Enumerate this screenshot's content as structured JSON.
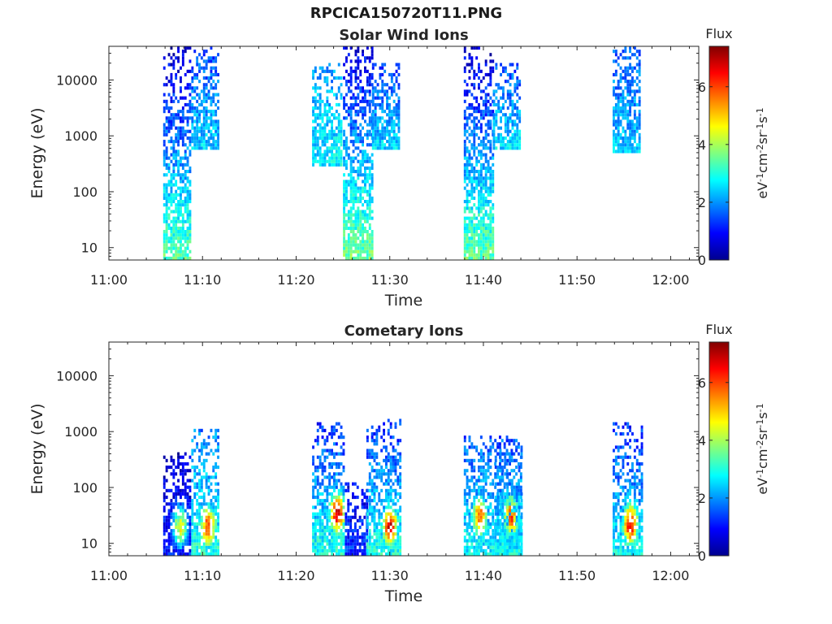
{
  "figure_title": "RPCICA150720T11.PNG",
  "colorbar": {
    "label_title": "Flux",
    "unit_parts": [
      "eV",
      "-1",
      "cm",
      "-2",
      "sr",
      "-1",
      "s",
      "-1"
    ],
    "ticks": [
      0,
      2,
      4,
      6
    ],
    "range": [
      0,
      7.4
    ],
    "colormap": "jet"
  },
  "chart_data": [
    {
      "type": "heatmap",
      "title": "Solar Wind Ions",
      "xlabel": "Time",
      "ylabel": "Energy (eV)",
      "x_ticks": [
        "11:00",
        "11:10",
        "11:20",
        "11:30",
        "11:40",
        "11:50",
        "12:00"
      ],
      "xlim": [
        "11:00",
        "12:03"
      ],
      "y_scale": "log",
      "y_ticks": [
        10,
        100,
        1000,
        10000
      ],
      "ylim": [
        6,
        40000
      ],
      "clim": [
        0,
        7.4
      ],
      "bursts": [
        {
          "t_start": "11:05.8",
          "t_end": "11:08.8",
          "e_min": 6,
          "e_max": 40000,
          "flux_low_energy": 3.4,
          "flux_high_energy": 0.5
        },
        {
          "t_start": "11:08.8",
          "t_end": "11:11.7",
          "e_min": 600,
          "e_max": 40000,
          "flux_low_energy": 2.5,
          "flux_high_energy": 1.3
        },
        {
          "t_start": "11:21.7",
          "t_end": "11:24.9",
          "e_min": 300,
          "e_max": 20000,
          "flux_low_energy": 2.7,
          "flux_high_energy": 2.0
        },
        {
          "t_start": "11:25.0",
          "t_end": "11:28.1",
          "e_min": 6,
          "e_max": 40000,
          "flux_low_energy": 3.6,
          "flux_high_energy": 0.6
        },
        {
          "t_start": "11:28.1",
          "t_end": "11:30.9",
          "e_min": 600,
          "e_max": 20000,
          "flux_low_energy": 2.5,
          "flux_high_energy": 1.3
        },
        {
          "t_start": "11:37.9",
          "t_end": "11:41.0",
          "e_min": 6,
          "e_max": 40000,
          "flux_low_energy": 3.5,
          "flux_high_energy": 0.5
        },
        {
          "t_start": "11:41.0",
          "t_end": "11:44.0",
          "e_min": 600,
          "e_max": 20000,
          "flux_low_energy": 2.6,
          "flux_high_energy": 1.4
        },
        {
          "t_start": "11:53.8",
          "t_end": "11:56.6",
          "e_min": 500,
          "e_max": 40000,
          "flux_low_energy": 2.4,
          "flux_high_energy": 1.5
        }
      ]
    },
    {
      "type": "heatmap",
      "title": "Cometary Ions",
      "xlabel": "Time",
      "ylabel": "Energy (eV)",
      "x_ticks": [
        "11:00",
        "11:10",
        "11:20",
        "11:30",
        "11:40",
        "11:50",
        "12:00"
      ],
      "xlim": [
        "11:00",
        "12:03"
      ],
      "y_scale": "log",
      "y_ticks": [
        10,
        100,
        1000,
        10000
      ],
      "ylim": [
        6,
        40000
      ],
      "clim": [
        0,
        7.4
      ],
      "bursts": [
        {
          "t_start": "11:05.8",
          "t_end": "11:08.8",
          "e_min": 6,
          "e_max": 400,
          "flux_low_energy": 1.2,
          "flux_high_energy": 0.6,
          "peak_time": "11:07.5",
          "peak_energy": 20,
          "peak_flux": 4.5
        },
        {
          "t_start": "11:08.8",
          "t_end": "11:11.8",
          "e_min": 6,
          "e_max": 1100,
          "flux_low_energy": 3.0,
          "flux_high_energy": 1.8,
          "peak_time": "11:10.5",
          "peak_energy": 20,
          "peak_flux": 6.2
        },
        {
          "t_start": "11:21.7",
          "t_end": "11:25.2",
          "e_min": 6,
          "e_max": 1400,
          "flux_low_energy": 3.0,
          "flux_high_energy": 1.2,
          "peak_time": "11:24.3",
          "peak_energy": 35,
          "peak_flux": 6.8
        },
        {
          "t_start": "11:25.2",
          "t_end": "11:27.5",
          "e_min": 6,
          "e_max": 120,
          "flux_low_energy": 1.3,
          "flux_high_energy": 0.8
        },
        {
          "t_start": "11:27.5",
          "t_end": "11:31.1",
          "e_min": 6,
          "e_max": 1600,
          "flux_low_energy": 3.0,
          "flux_high_energy": 1.2,
          "peak_time": "11:29.9",
          "peak_energy": 20,
          "peak_flux": 6.8
        },
        {
          "t_start": "11:37.9",
          "t_end": "11:44.0",
          "e_min": 6,
          "e_max": 900,
          "flux_low_energy": 2.8,
          "flux_high_energy": 1.5,
          "peak_time": "11:39.5",
          "peak_energy": 30,
          "peak_flux": 5.8
        },
        {
          "t_start": "11:41.2",
          "t_end": "11:44.0",
          "e_min": 6,
          "e_max": 600,
          "flux_low_energy": 2.8,
          "flux_high_energy": 1.5,
          "peak_time": "11:42.8",
          "peak_energy": 30,
          "peak_flux": 6.0
        },
        {
          "t_start": "11:53.8",
          "t_end": "11:56.9",
          "e_min": 6,
          "e_max": 1400,
          "flux_low_energy": 2.8,
          "flux_high_energy": 1.2,
          "peak_time": "11:55.6",
          "peak_energy": 22,
          "peak_flux": 6.7
        }
      ]
    }
  ]
}
